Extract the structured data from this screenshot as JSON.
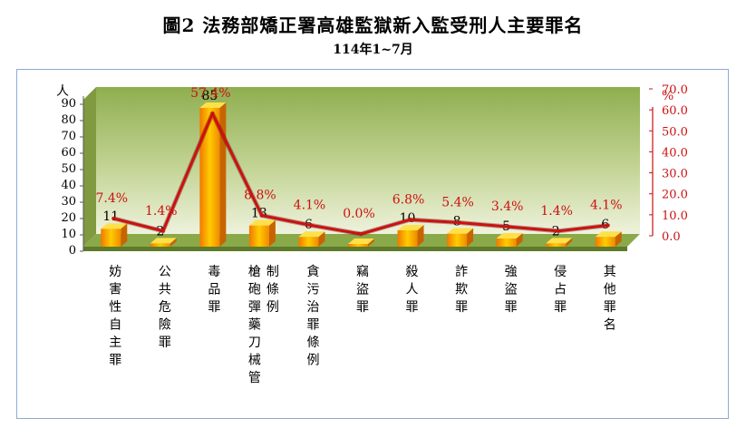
{
  "title": "圖2  法務部矯正署高雄監獄新入監受刑人主要罪名",
  "subtitle": "114年1~7月",
  "colors": {
    "bar": "#f5a000",
    "line": "#cc1111",
    "plot_bg": "#b8cc7a",
    "floor": "#8aaa4a"
  },
  "chart_data": {
    "type": "bar",
    "categories": [
      "妨害性自主罪",
      "公共危險罪",
      "毒品罪",
      "槍砲彈藥刀械管制條例",
      "貪污治罪條例",
      "竊盜罪",
      "殺人罪",
      "詐欺罪",
      "強盜罪",
      "侵占罪",
      "其他罪名"
    ],
    "category_label_columns": [
      [
        "妨害性自主罪"
      ],
      [
        "公共危險罪"
      ],
      [
        "毒品罪"
      ],
      [
        "槍砲彈藥刀械管",
        "制條例"
      ],
      [
        "貪污治罪條例"
      ],
      [
        "竊盜罪"
      ],
      [
        "殺人罪"
      ],
      [
        "詐欺罪"
      ],
      [
        "強盜罪"
      ],
      [
        "侵占罪"
      ],
      [
        "其他罪名"
      ]
    ],
    "series": [
      {
        "values": [
          11,
          2,
          85,
          13,
          6,
          0,
          10,
          8,
          5,
          2,
          6
        ],
        "data_labels": [
          "11",
          "2",
          "85",
          "13",
          "6",
          "-",
          "10",
          "8",
          "5",
          "2",
          "6"
        ]
      },
      {
        "values": [
          7.4,
          1.4,
          57.4,
          8.8,
          4.1,
          0.0,
          6.8,
          5.4,
          3.4,
          1.4,
          4.1
        ],
        "data_labels": [
          "7.4%",
          "1.4%",
          "57.4%",
          "8.8%",
          "4.1%",
          "0.0%",
          "6.8%",
          "5.4%",
          "3.4%",
          "1.4%",
          "4.1%"
        ]
      }
    ],
    "ylabel_left": "人",
    "ylabel_right": "%",
    "ylim_left": [
      0,
      90
    ],
    "ylim_right": [
      0,
      70
    ],
    "yticks_left": [
      "0",
      "10",
      "20",
      "30",
      "40",
      "50",
      "60",
      "70",
      "80",
      "90"
    ],
    "yticks_right": [
      "0.0",
      "10.0",
      "20.0",
      "30.0",
      "40.0",
      "50.0",
      "60.0",
      "70.0"
    ],
    "grid": false
  }
}
